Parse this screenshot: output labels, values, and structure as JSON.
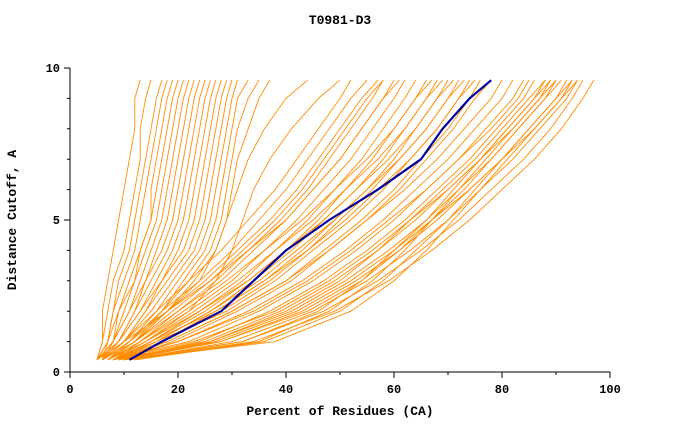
{
  "chart_data": {
    "type": "line",
    "title": "T0981-D3",
    "xlabel": "Percent of Residues (CA)",
    "ylabel": "Distance Cutoff, A",
    "xlim": [
      0,
      100
    ],
    "ylim": [
      0,
      10
    ],
    "x_ticks": [
      0,
      20,
      40,
      60,
      80,
      100
    ],
    "x_minor_ticks": [
      10,
      30,
      50,
      70,
      90
    ],
    "y_ticks": [
      0,
      5,
      10
    ],
    "y_minor_ticks": [
      1,
      2,
      3,
      4,
      6,
      7,
      8,
      9
    ],
    "grid": false,
    "legend": "none",
    "colors": {
      "model_lines": "#ff8c00",
      "highlight_line": "#0000a0",
      "axis": "#000000",
      "background": "#ffffff"
    },
    "y_levels": [
      0.4,
      1,
      2,
      3,
      4,
      5,
      6,
      7,
      8,
      9,
      9.6
    ],
    "highlight_curve_x": [
      11,
      17,
      28,
      34,
      40,
      48,
      57,
      65,
      69,
      74,
      78
    ],
    "model_curves_x": [
      [
        5,
        6,
        6,
        7,
        8,
        9,
        10,
        11,
        12,
        12,
        13
      ],
      [
        5,
        6,
        7,
        8,
        10,
        11,
        12,
        13,
        13,
        14,
        15
      ],
      [
        6,
        7,
        8,
        9,
        11,
        12,
        13,
        14,
        15,
        16,
        17
      ],
      [
        5,
        7,
        8,
        10,
        12,
        13,
        14,
        15,
        16,
        17,
        18
      ],
      [
        6,
        8,
        9,
        12,
        13,
        15,
        15,
        16,
        17,
        18,
        19
      ],
      [
        5,
        7,
        9,
        11,
        13,
        15,
        16,
        17,
        18,
        19,
        20
      ],
      [
        6,
        8,
        10,
        12,
        14,
        16,
        17,
        18,
        19,
        20,
        21
      ],
      [
        5,
        8,
        11,
        13,
        15,
        17,
        18,
        19,
        20,
        21,
        22
      ],
      [
        6,
        9,
        12,
        14,
        16,
        18,
        19,
        20,
        21,
        22,
        23
      ],
      [
        5,
        8,
        11,
        14,
        17,
        19,
        20,
        21,
        22,
        23,
        24
      ],
      [
        6,
        9,
        12,
        15,
        18,
        20,
        21,
        22,
        23,
        24,
        25
      ],
      [
        5,
        9,
        13,
        16,
        19,
        21,
        22,
        23,
        24,
        25,
        26
      ],
      [
        6,
        10,
        14,
        17,
        20,
        22,
        23,
        24,
        25,
        26,
        27
      ],
      [
        5,
        9,
        13,
        17,
        21,
        23,
        24,
        25,
        26,
        27,
        28
      ],
      [
        6,
        10,
        14,
        18,
        22,
        24,
        25,
        26,
        27,
        28,
        29
      ],
      [
        5,
        10,
        15,
        19,
        23,
        25,
        26,
        27,
        28,
        29,
        30
      ],
      [
        6,
        11,
        16,
        20,
        24,
        26,
        27,
        28,
        29,
        30,
        31
      ],
      [
        7,
        12,
        17,
        21,
        25,
        27,
        28,
        29,
        30,
        31,
        33
      ],
      [
        6,
        11,
        17,
        22,
        26,
        28,
        29,
        30,
        31,
        33,
        35
      ],
      [
        7,
        12,
        18,
        23,
        27,
        29,
        30,
        31,
        33,
        35,
        37
      ],
      [
        6,
        10,
        18,
        24,
        27,
        29,
        31,
        33,
        36,
        40,
        44
      ],
      [
        7,
        14,
        22,
        27,
        30,
        32,
        34,
        37,
        41,
        46,
        50
      ],
      [
        6,
        10,
        16,
        22,
        28,
        33,
        38,
        42,
        46,
        50,
        52
      ],
      [
        7,
        11,
        17,
        24,
        30,
        35,
        40,
        44,
        48,
        52,
        55
      ],
      [
        6,
        12,
        18,
        25,
        31,
        37,
        42,
        46,
        50,
        54,
        57
      ],
      [
        7,
        13,
        20,
        27,
        33,
        39,
        44,
        48,
        52,
        56,
        58
      ],
      [
        6,
        11,
        18,
        26,
        32,
        38,
        43,
        47,
        51,
        55,
        58
      ],
      [
        7,
        12,
        19,
        26,
        33,
        40,
        45,
        50,
        54,
        58,
        61
      ],
      [
        7,
        12,
        20,
        28,
        34,
        40,
        45,
        50,
        54,
        58,
        60
      ],
      [
        8,
        13,
        22,
        30,
        36,
        42,
        47,
        52,
        56,
        60,
        62
      ],
      [
        7,
        14,
        24,
        32,
        38,
        44,
        49,
        54,
        58,
        62,
        64
      ],
      [
        8,
        15,
        25,
        33,
        40,
        46,
        51,
        56,
        60,
        64,
        66
      ],
      [
        9,
        16,
        26,
        34,
        41,
        47,
        53,
        58,
        62,
        66,
        68
      ],
      [
        8,
        15,
        27,
        36,
        43,
        49,
        55,
        60,
        64,
        68,
        70
      ],
      [
        9,
        17,
        28,
        37,
        44,
        50,
        56,
        61,
        66,
        70,
        72
      ],
      [
        8,
        16,
        29,
        38,
        45,
        52,
        58,
        63,
        68,
        72,
        74
      ],
      [
        9,
        18,
        30,
        40,
        47,
        54,
        60,
        65,
        70,
        74,
        76
      ],
      [
        10,
        19,
        31,
        41,
        48,
        55,
        61,
        66,
        71,
        75,
        78
      ],
      [
        7,
        13,
        21,
        29,
        36,
        43,
        49,
        55,
        60,
        64,
        67
      ],
      [
        8,
        14,
        23,
        31,
        38,
        45,
        51,
        57,
        62,
        66,
        69
      ],
      [
        9,
        15,
        24,
        33,
        40,
        47,
        53,
        59,
        64,
        68,
        71
      ],
      [
        8,
        16,
        26,
        35,
        42,
        49,
        55,
        61,
        66,
        70,
        73
      ],
      [
        10,
        17,
        27,
        36,
        44,
        51,
        57,
        63,
        68,
        72,
        75
      ],
      [
        8,
        18,
        30,
        40,
        48,
        55,
        62,
        68,
        73,
        78,
        80
      ],
      [
        9,
        20,
        33,
        43,
        51,
        58,
        64,
        70,
        75,
        80,
        82
      ],
      [
        8,
        22,
        35,
        45,
        53,
        60,
        66,
        72,
        77,
        82,
        84
      ],
      [
        10,
        24,
        37,
        47,
        55,
        62,
        68,
        74,
        79,
        84,
        86
      ],
      [
        9,
        25,
        39,
        49,
        57,
        64,
        70,
        76,
        81,
        86,
        88
      ],
      [
        10,
        26,
        41,
        51,
        59,
        66,
        72,
        78,
        83,
        88,
        90
      ],
      [
        9,
        28,
        43,
        53,
        61,
        68,
        74,
        80,
        85,
        90,
        92
      ],
      [
        11,
        30,
        45,
        55,
        63,
        70,
        76,
        82,
        87,
        92,
        94
      ],
      [
        10,
        32,
        47,
        57,
        65,
        72,
        78,
        84,
        89,
        93,
        95
      ],
      [
        11,
        34,
        49,
        59,
        67,
        74,
        80,
        86,
        91,
        95,
        97
      ],
      [
        8,
        20,
        34,
        44,
        52,
        59,
        66,
        72,
        78,
        83,
        85
      ],
      [
        9,
        23,
        38,
        48,
        56,
        63,
        70,
        76,
        82,
        87,
        89
      ],
      [
        10,
        27,
        42,
        52,
        60,
        67,
        74,
        80,
        86,
        91,
        93
      ],
      [
        12,
        35,
        48,
        56,
        62,
        67,
        72,
        77,
        82,
        87,
        90
      ],
      [
        10,
        38,
        52,
        60,
        66,
        71,
        76,
        81,
        86,
        91,
        94
      ],
      [
        11,
        32,
        46,
        54,
        60,
        66,
        71,
        76,
        81,
        86,
        89
      ],
      [
        9,
        26,
        40,
        50,
        57,
        63,
        69,
        75,
        80,
        85,
        88
      ],
      [
        10,
        28,
        44,
        54,
        61,
        67,
        73,
        78,
        83,
        88,
        91
      ],
      [
        12,
        36,
        50,
        58,
        64,
        70,
        75,
        80,
        85,
        90,
        93
      ]
    ]
  }
}
